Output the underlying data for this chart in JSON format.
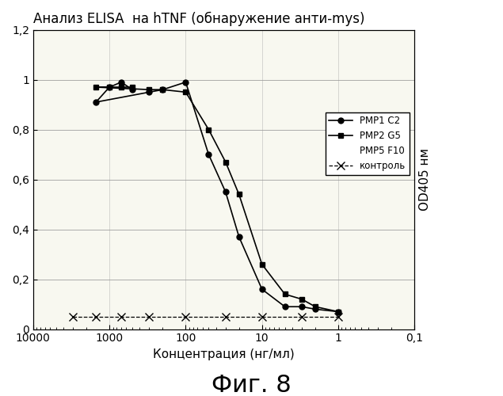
{
  "title": "Анализ ELISA  на hTNF (обнаружение анти-mys)",
  "xlabel": "Концентрация (нг/мл)",
  "ylabel": "OD405 нм",
  "fig_label": "Фиг. 8",
  "ylim": [
    0,
    1.2
  ],
  "yticks": [
    0,
    0.2,
    0.4,
    0.6,
    0.8,
    1.0,
    1.2
  ],
  "ytick_labels": [
    "0",
    "0,2",
    "0,4",
    "0,6",
    "0,8",
    "1",
    "1,2"
  ],
  "pmp1_c2_x": [
    500,
    700,
    1000,
    1500,
    300,
    200,
    100,
    50,
    30,
    20,
    10,
    5,
    3,
    2,
    1
  ],
  "pmp1_c2_y": [
    0.96,
    0.99,
    0.97,
    0.91,
    0.95,
    0.96,
    0.99,
    0.7,
    0.55,
    0.37,
    0.16,
    0.09,
    0.09,
    0.08,
    0.07
  ],
  "pmp2_g5_x": [
    500,
    700,
    1000,
    1500,
    300,
    200,
    100,
    50,
    30,
    20,
    10,
    5,
    3,
    2,
    1
  ],
  "pmp2_g5_y": [
    0.97,
    0.97,
    0.97,
    0.97,
    0.96,
    0.96,
    0.95,
    0.8,
    0.67,
    0.54,
    0.26,
    0.14,
    0.12,
    0.09,
    0.07
  ],
  "control_x": [
    3000,
    1500,
    700,
    300,
    100,
    30,
    10,
    3,
    1
  ],
  "control_y": [
    0.05,
    0.05,
    0.05,
    0.05,
    0.05,
    0.05,
    0.05,
    0.05,
    0.05
  ],
  "legend_labels": [
    "PMP1 C2",
    "PMP2 G5",
    "PMP5 F10",
    "контроль"
  ],
  "background_color": "#ffffff",
  "plot_bg_color": "#f8f8f0",
  "line_color": "#000000",
  "grid_color": "#999999"
}
